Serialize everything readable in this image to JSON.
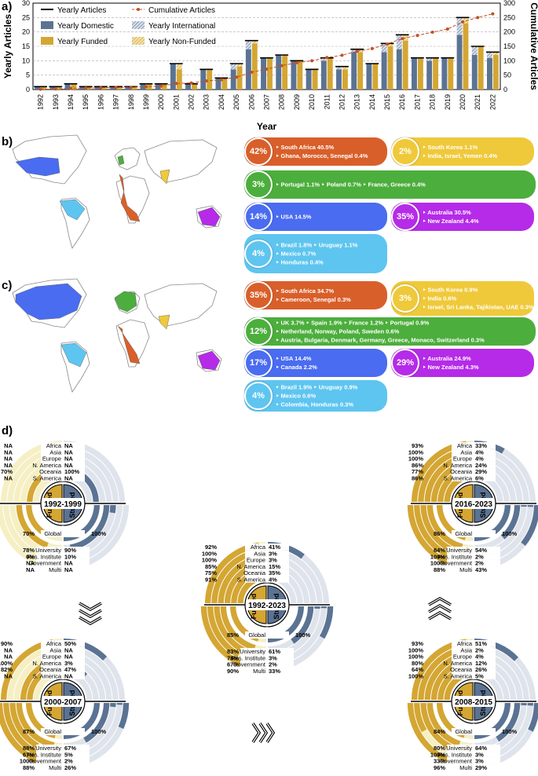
{
  "panel_labels": {
    "a": "a)",
    "b": "b)",
    "c": "c)",
    "d": "d)"
  },
  "chart_data": {
    "type": "bar",
    "xlabel": "Year",
    "ylabel": "Yearly Articles",
    "y2label": "Cumulative Articles",
    "ylim": [
      0,
      30
    ],
    "y2lim": [
      0,
      300
    ],
    "yticks": [
      0,
      5,
      10,
      15,
      20,
      25,
      30
    ],
    "y2ticks": [
      0,
      50,
      100,
      150,
      200,
      250,
      300
    ],
    "grid": "horizontal dashed",
    "legend_position": "top",
    "legend": [
      {
        "name": "Yearly Articles",
        "marker": "line",
        "color": "#000000"
      },
      {
        "name": "Cumulative Articles",
        "marker": "dashed-dot",
        "color": "#c0502a"
      },
      {
        "name": "Yearly Domestic",
        "marker": "box",
        "color": "#5b7393"
      },
      {
        "name": "Yearly International",
        "marker": "hatched",
        "color": "#a9b8cc"
      },
      {
        "name": "Yearly Funded",
        "marker": "box",
        "color": "#d4a633"
      },
      {
        "name": "Yearly Non-Funded",
        "marker": "hatched",
        "color": "#ead28b"
      }
    ],
    "categories": [
      "1992",
      "1993",
      "1994",
      "1995",
      "1996",
      "1997",
      "1998",
      "1999",
      "2000",
      "2001",
      "2002",
      "2003",
      "2004",
      "2005",
      "2006",
      "2007",
      "2008",
      "2009",
      "2010",
      "2011",
      "2012",
      "2013",
      "2014",
      "2015",
      "2016",
      "2017",
      "2018",
      "2019",
      "2020",
      "2021",
      "2022"
    ],
    "series": [
      {
        "name": "Yearly Articles",
        "values": [
          1,
          1,
          2,
          1,
          1,
          1,
          1,
          2,
          2,
          9,
          2,
          7,
          4,
          9,
          17,
          11,
          12,
          10,
          7,
          11,
          8,
          14,
          9,
          16,
          19,
          11,
          11,
          11,
          25,
          15,
          13
        ]
      },
      {
        "name": "Yearly Domestic",
        "values": [
          1,
          1,
          2,
          1,
          1,
          1,
          1,
          2,
          2,
          9,
          2,
          7,
          4,
          7,
          14,
          11,
          12,
          10,
          7,
          10,
          7,
          13,
          9,
          13,
          14,
          11,
          10,
          11,
          19,
          12,
          11
        ]
      },
      {
        "name": "Yearly International",
        "values": [
          0,
          0,
          0,
          0,
          0,
          0,
          0,
          0,
          0,
          0,
          0,
          0,
          0,
          2,
          3,
          0,
          0,
          0,
          0,
          1,
          1,
          1,
          0,
          3,
          5,
          0,
          1,
          0,
          6,
          3,
          2
        ]
      },
      {
        "name": "Yearly Funded",
        "values": [
          1,
          1,
          2,
          1,
          1,
          1,
          1,
          2,
          2,
          7,
          2,
          7,
          4,
          8,
          16,
          11,
          12,
          10,
          7,
          11,
          7,
          13,
          9,
          15,
          17,
          11,
          11,
          11,
          23,
          15,
          12
        ]
      },
      {
        "name": "Yearly Non-Funded",
        "values": [
          0,
          0,
          0,
          0,
          0,
          0,
          0,
          0,
          0,
          2,
          0,
          0,
          0,
          1,
          1,
          0,
          0,
          0,
          0,
          0,
          1,
          1,
          0,
          1,
          2,
          0,
          0,
          0,
          2,
          0,
          1
        ]
      },
      {
        "name": "Cumulative Articles",
        "values": [
          1,
          2,
          4,
          5,
          6,
          7,
          8,
          10,
          12,
          21,
          23,
          30,
          34,
          43,
          60,
          71,
          83,
          93,
          100,
          111,
          119,
          133,
          142,
          158,
          177,
          188,
          199,
          210,
          235,
          250,
          263
        ]
      }
    ]
  },
  "maps": {
    "colors": {
      "africa": "#d95f2a",
      "asia": "#efc93a",
      "europe": "#4cae3c",
      "namerica": "#4a6cf0",
      "oceania": "#b52be8",
      "samerica": "#5ec5f0"
    },
    "b_bubbles": [
      {
        "key": "africa",
        "pct": "42%",
        "lines": [
          "‣ South Africa 40.5%",
          "‣ Ghana, Morocco, Senegal 0.4%"
        ]
      },
      {
        "key": "asia",
        "pct": "2%",
        "lines": [
          "‣ South Korea 1.1%",
          "‣ India, Israel, Yemen 0.4%"
        ]
      },
      {
        "key": "europe",
        "pct": "3%",
        "lines": [
          "‣ Portugal 1.1%   ‣ Poland 0.7%   ‣ France, Greece 0.4%"
        ]
      },
      {
        "key": "namerica",
        "pct": "14%",
        "lines": [
          "‣ USA 14.5%"
        ]
      },
      {
        "key": "oceania",
        "pct": "35%",
        "lines": [
          "‣ Australia 30.5%",
          "‣ New Zealand 4.4%"
        ]
      },
      {
        "key": "samerica",
        "pct": "4%",
        "lines": [
          "‣ Brazil 1.8%   ‣ Uruguay 1.1%",
          "‣ Mexico 0.7%",
          "‣ Honduras 0.4%"
        ]
      }
    ],
    "c_bubbles": [
      {
        "key": "africa",
        "pct": "35%",
        "lines": [
          "‣ South Africa 34.7%",
          "‣ Cameroon, Senegal 0.3%"
        ]
      },
      {
        "key": "asia",
        "pct": "3%",
        "lines": [
          "‣ South Korea 0.9%",
          "‣ India 0.6%",
          "‣ Israel, Sri Lanka, Tajikistan, UAE 0.3%"
        ]
      },
      {
        "key": "europe",
        "pct": "12%",
        "lines": [
          "‣ UK 3.7%   ‣ Spain 1.9%   ‣ France 1.2%   ‣ Portugal 0.9%",
          "‣ Netherland, Norway, Poland, Sweden 0.6%",
          "‣ Austria, Bulgaria, Denmark, Germany, Greece, Monaco, Switzerland 0.3%"
        ]
      },
      {
        "key": "namerica",
        "pct": "17%",
        "lines": [
          "‣ USA 14.4%",
          "‣ Canada 2.2%"
        ]
      },
      {
        "key": "oceania",
        "pct": "29%",
        "lines": [
          "‣ Australia 24.9%",
          "‣ New Zealand 4.3%"
        ]
      },
      {
        "key": "samerica",
        "pct": "4%",
        "lines": [
          "‣ Brazil 1.9%   ‣ Uruguay 0.9%",
          "‣ Mexico 0.6%",
          "‣ Colombia, Honduras 0.3%"
        ]
      }
    ]
  },
  "donuts": {
    "top_rows": [
      "Africa",
      "Asia",
      "Europe",
      "N. America",
      "Oceania",
      "S. America"
    ],
    "global_label": "Global",
    "bottom_rows": [
      "University",
      "Res. Institute",
      "Government",
      "Multi"
    ],
    "funded_label": "Funded",
    "studied_label": "Studied",
    "colors": {
      "funded": "#d4a633",
      "funded_bg": "#f6efc4",
      "studied": "#5b7393",
      "studied_bg": "#dfe4ec"
    },
    "items": [
      {
        "period": "1992-1999",
        "top_funded": [
          "NA",
          "NA",
          "NA",
          "NA",
          "70%",
          "NA"
        ],
        "top_studied": [
          "NA",
          "NA",
          "NA",
          "NA",
          "100%",
          "NA"
        ],
        "global_funded": "70%",
        "global_studied": "100%",
        "bottom_funded": [
          "78%",
          "0%",
          "NA",
          "NA"
        ],
        "bottom_studied": [
          "90%",
          "10%",
          "NA",
          "NA"
        ]
      },
      {
        "period": "2016-2023",
        "top_funded": [
          "93%",
          "100%",
          "100%",
          "86%",
          "77%",
          "86%"
        ],
        "top_studied": [
          "33%",
          "4%",
          "4%",
          "24%",
          "29%",
          "6%"
        ],
        "global_funded": "86%",
        "global_studied": "100%",
        "bottom_funded": [
          "84%",
          "100%",
          "100%",
          "88%"
        ],
        "bottom_studied": [
          "54%",
          "2%",
          "2%",
          "43%"
        ]
      },
      {
        "period": "1992-2023",
        "top_funded": [
          "92%",
          "100%",
          "100%",
          "85%",
          "75%",
          "91%"
        ],
        "top_studied": [
          "41%",
          "3%",
          "3%",
          "15%",
          "35%",
          "4%"
        ],
        "global_funded": "85%",
        "global_studied": "100%",
        "bottom_funded": [
          "83%",
          "78%",
          "67%",
          "90%"
        ],
        "bottom_studied": [
          "61%",
          "3%",
          "2%",
          "33%"
        ]
      },
      {
        "period": "2000-2007",
        "top_funded": [
          "90%",
          "NA",
          "NA",
          "100%",
          "82%",
          "NA"
        ],
        "top_studied": [
          "50%",
          "NA",
          "NA",
          "3%",
          "47%",
          "NA"
        ],
        "global_funded": "87%",
        "global_studied": "100%",
        "bottom_funded": [
          "88%",
          "67%",
          "100%",
          "88%"
        ],
        "bottom_studied": [
          "67%",
          "5%",
          "2%",
          "26%"
        ]
      },
      {
        "period": "2008-2015",
        "top_funded": [
          "93%",
          "100%",
          "100%",
          "80%",
          "64%",
          "100%"
        ],
        "top_studied": [
          "51%",
          "2%",
          "4%",
          "12%",
          "26%",
          "5%"
        ],
        "global_funded": "84%",
        "global_studied": "100%",
        "bottom_funded": [
          "80%",
          "100%",
          "33%",
          "96%"
        ],
        "bottom_studied": [
          "64%",
          "3%",
          "3%",
          "29%"
        ]
      }
    ]
  }
}
